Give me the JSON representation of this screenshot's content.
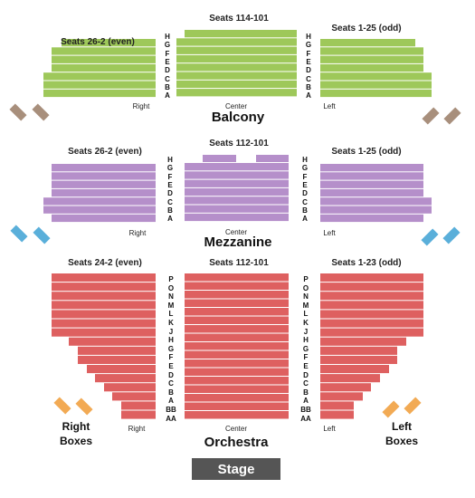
{
  "stage": {
    "label": "Stage"
  },
  "colors": {
    "balcony": "#9ec85a",
    "mezzanine": "#b58fca",
    "orchestra": "#de6060",
    "balcony_boxes": "#a88f7c",
    "mezzanine_boxes": "#5aafda",
    "orchestra_boxes": "#f2aa54",
    "stage": "#555555"
  },
  "balcony": {
    "name": "Balcony",
    "sections": {
      "left": "Seats 26-2 (even)",
      "center": "Seats 114-101",
      "right": "Seats 1-25 (odd)"
    },
    "positions": {
      "left": "Right",
      "center": "Center",
      "right": "Left"
    },
    "rows": [
      "H",
      "G",
      "F",
      "E",
      "D",
      "C",
      "B",
      "A"
    ]
  },
  "mezzanine": {
    "name": "Mezzanine",
    "sections": {
      "left": "Seats 26-2 (even)",
      "center": "Seats 112-101",
      "right": "Seats 1-25 (odd)"
    },
    "positions": {
      "left": "Right",
      "center": "Center",
      "right": "Left"
    },
    "rows": [
      "H",
      "G",
      "F",
      "E",
      "D",
      "C",
      "B",
      "A"
    ]
  },
  "orchestra": {
    "name": "Orchestra",
    "sections": {
      "left": "Seats 24-2 (even)",
      "center": "Seats 112-101",
      "right": "Seats 1-23 (odd)"
    },
    "positions": {
      "left": "Right",
      "center": "Center",
      "right": "Left"
    },
    "rows": [
      "P",
      "O",
      "N",
      "M",
      "L",
      "K",
      "J",
      "H",
      "G",
      "F",
      "E",
      "D",
      "C",
      "B",
      "A",
      "BB",
      "AA"
    ],
    "boxes": {
      "left_line1": "Right",
      "left_line2": "Boxes",
      "right_line1": "Left",
      "right_line2": "Boxes"
    }
  }
}
